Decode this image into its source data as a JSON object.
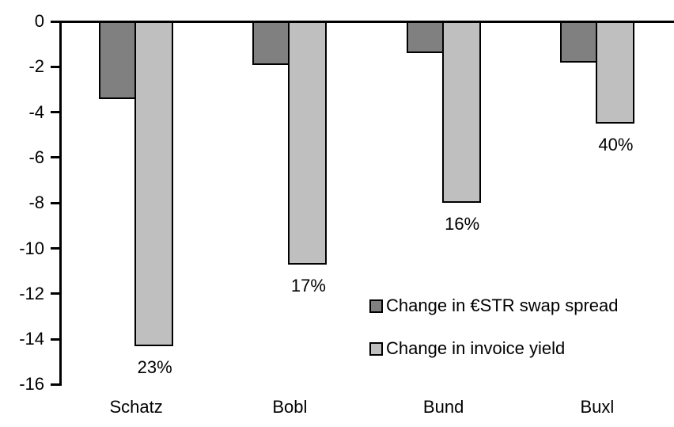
{
  "chart_data": {
    "type": "bar",
    "title": "",
    "xlabel": "",
    "ylabel": "",
    "categories": [
      "Schatz",
      "Bobl",
      "Bund",
      "Buxl"
    ],
    "series": [
      {
        "name": "Change in €STR swap spread",
        "color": "#808080",
        "values": [
          -3.3,
          -1.8,
          -1.3,
          -1.7
        ]
      },
      {
        "name": "Change in invoice yield",
        "color": "#BFBFBF",
        "values": [
          -14.2,
          -10.6,
          -7.9,
          -4.4
        ],
        "data_labels": [
          "23%",
          "17%",
          "16%",
          "40%"
        ]
      }
    ],
    "ylim": [
      -16,
      0
    ],
    "yticks": [
      0,
      -2,
      -4,
      -6,
      -8,
      -10,
      -12,
      -14,
      -16
    ],
    "grid": false,
    "legend_position": "inside-right",
    "axis_color": "#000000",
    "bar_border_color": "#000000",
    "background": "#FFFFFF"
  }
}
